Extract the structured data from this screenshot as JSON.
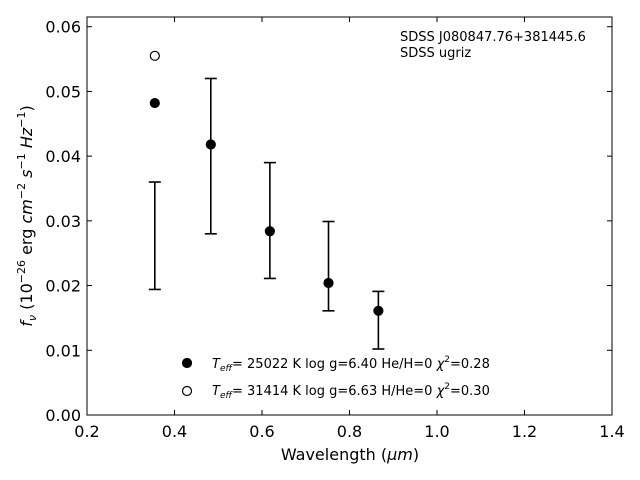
{
  "chart_data": {
    "type": "scatter",
    "xlabel_text": "Wavelength (",
    "xlabel_unit": "μm",
    "xlabel_close": ")",
    "ylabel_func": "f",
    "ylabel_sub": "ν",
    "ylabel_mid": "(10",
    "ylabel_exp": "−26",
    "ylabel_unit": "erg",
    "ylabel_cm": "cm",
    "ylabel_cm_exp": "−2",
    "ylabel_s": "s",
    "ylabel_s_exp": "−1",
    "ylabel_hz": "Hz",
    "ylabel_hz_exp": "−1",
    "ylabel_close": ")",
    "xlim": [
      0.2,
      1.4
    ],
    "ylim": [
      0.0,
      0.0615
    ],
    "xticks": [
      "0.2",
      "0.4",
      "0.6",
      "0.8",
      "1.0",
      "1.2",
      "1.4"
    ],
    "yticks": [
      "0.00",
      "0.01",
      "0.02",
      "0.03",
      "0.04",
      "0.05",
      "0.06"
    ],
    "annotation": {
      "line1": "SDSS J080847.76+381445.6",
      "line2": "SDSS ugriz"
    },
    "error_bars": [
      {
        "x": 0.355,
        "low": 0.0194,
        "high": 0.036
      },
      {
        "x": 0.483,
        "low": 0.028,
        "high": 0.052
      },
      {
        "x": 0.618,
        "low": 0.0211,
        "high": 0.039
      },
      {
        "x": 0.752,
        "low": 0.0161,
        "high": 0.0299
      },
      {
        "x": 0.866,
        "low": 0.0102,
        "high": 0.0191
      }
    ],
    "series": [
      {
        "marker": "filled-circle",
        "color": "#000000",
        "legend": {
          "teff": "T",
          "teff_sub": "eff",
          "rest": "= 25022 K  log g=6.40  He/H=0  ",
          "chi": "χ",
          "chi_exp": "2",
          "chi_val": "=0.28"
        },
        "points": [
          {
            "x": 0.355,
            "y": 0.0482
          },
          {
            "x": 0.483,
            "y": 0.0418
          },
          {
            "x": 0.618,
            "y": 0.0284
          },
          {
            "x": 0.752,
            "y": 0.0204
          },
          {
            "x": 0.866,
            "y": 0.0161
          }
        ]
      },
      {
        "marker": "open-circle",
        "color": "#000000",
        "legend": {
          "teff": "T",
          "teff_sub": "eff",
          "rest": "= 31414 K  log g=6.63  H/He=0  ",
          "chi": "χ",
          "chi_exp": "2",
          "chi_val": "=0.30"
        },
        "points": [
          {
            "x": 0.355,
            "y": 0.0555
          }
        ]
      }
    ]
  }
}
